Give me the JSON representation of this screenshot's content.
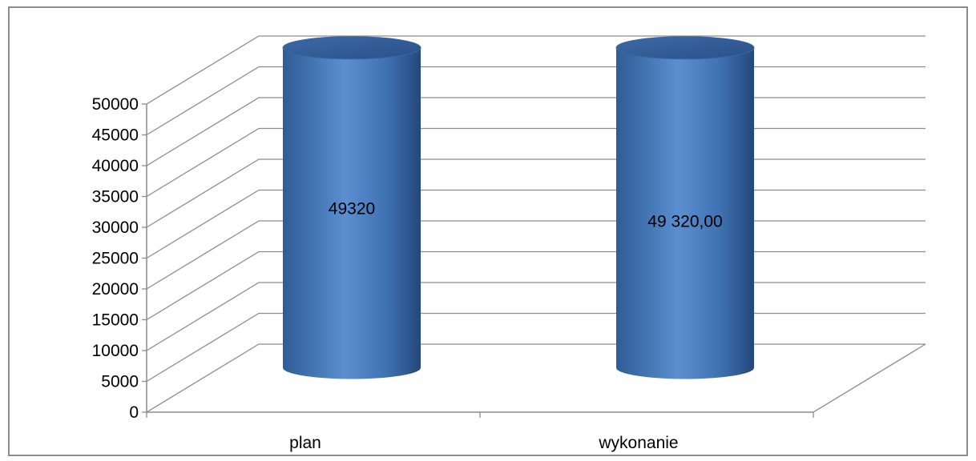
{
  "chart_data": {
    "type": "bar",
    "style": "3d-cylinder",
    "categories": [
      "plan",
      "wykonanie"
    ],
    "series": [
      {
        "values": [
          49320,
          49320
        ],
        "color": "#4a7ebb"
      }
    ],
    "data_labels": [
      "49320",
      "49 320,00"
    ],
    "ylim": [
      0,
      50000
    ],
    "yticks": [
      "0",
      "5000",
      "10000",
      "15000",
      "20000",
      "25000",
      "30000",
      "35000",
      "40000",
      "45000",
      "50000"
    ],
    "grid": true,
    "legend": "none",
    "title": "",
    "xlabel": "",
    "ylabel": ""
  }
}
